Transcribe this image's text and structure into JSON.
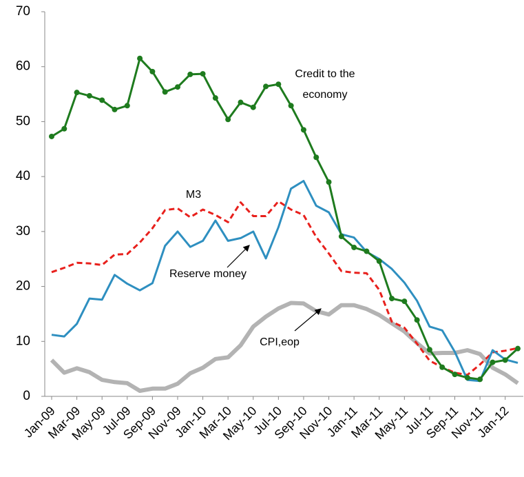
{
  "chart_data": {
    "type": "line",
    "categories": [
      "Jan-09",
      null,
      "Mar-09",
      null,
      "May-09",
      null,
      "Jul-09",
      null,
      "Sep-09",
      null,
      "Nov-09",
      null,
      "Jan-10",
      null,
      "Mar-10",
      null,
      "May-10",
      null,
      "Jul-10",
      null,
      "Sep-10",
      null,
      "Nov-10",
      null,
      "Jan-11",
      null,
      "Mar-11",
      null,
      "May-11",
      null,
      "Jul-11",
      null,
      "Sep-11",
      null,
      "Nov-11",
      null,
      "Jan-12",
      null
    ],
    "series": [
      {
        "color": "#1e7b1e",
        "style": "solid-markers",
        "values": [
          47.3,
          48.7,
          55.3,
          54.7,
          53.9,
          52.2,
          52.9,
          61.5,
          59.1,
          55.4,
          56.3,
          58.6,
          58.7,
          54.3,
          50.4,
          53.5,
          52.6,
          56.4,
          56.8,
          52.9,
          48.5,
          43.5,
          39.0,
          29.1,
          27.1,
          26.4,
          24.6,
          17.8,
          17.3,
          13.9,
          8.5,
          5.3,
          4.0,
          3.4,
          3.1,
          6.2,
          6.6,
          8.7
        ]
      },
      {
        "color": "#2e8fc0",
        "style": "solid",
        "values": [
          11.2,
          10.9,
          13.2,
          17.8,
          17.6,
          22.1,
          20.5,
          19.3,
          20.6,
          27.4,
          30.0,
          27.2,
          28.3,
          32.0,
          28.3,
          28.8,
          30.0,
          25.1,
          30.8,
          37.8,
          39.2,
          34.7,
          33.5,
          29.5,
          28.9,
          26.3,
          25.0,
          23.2,
          20.7,
          17.4,
          12.7,
          12.0,
          8.1,
          3.0,
          2.8,
          8.4,
          6.7,
          6.1
        ]
      },
      {
        "color": "#e8201c",
        "style": "dashed",
        "values": [
          22.6,
          23.4,
          24.3,
          24.2,
          23.9,
          25.8,
          25.9,
          28.0,
          30.6,
          33.9,
          34.2,
          32.6,
          34.0,
          33.0,
          31.7,
          35.3,
          32.8,
          32.8,
          35.5,
          34.0,
          33.0,
          29.0,
          26.0,
          22.8,
          22.5,
          22.4,
          19.4,
          13.6,
          12.5,
          9.6,
          6.5,
          5.3,
          4.3,
          3.9,
          5.8,
          8.0,
          8.3,
          8.8
        ]
      },
      {
        "color": "#b3b3b3",
        "style": "thick",
        "values": [
          6.6,
          4.3,
          5.1,
          4.4,
          3.0,
          2.6,
          2.4,
          1.0,
          1.4,
          1.4,
          2.3,
          4.2,
          5.2,
          6.8,
          7.1,
          9.3,
          12.7,
          14.5,
          16.0,
          17.0,
          16.9,
          15.5,
          14.9,
          16.6,
          16.6,
          15.9,
          14.8,
          13.3,
          11.8,
          9.7,
          7.8,
          7.9,
          7.9,
          8.4,
          7.7,
          5.2,
          4.0,
          2.4
        ]
      }
    ],
    "annotations": [
      "Credit to the",
      "economy",
      "M3",
      "Reserve money",
      "CPI,eop"
    ],
    "ylim": [
      0,
      70
    ],
    "yticks": [
      0,
      10,
      20,
      30,
      40,
      50,
      60,
      70
    ],
    "grid": false
  }
}
